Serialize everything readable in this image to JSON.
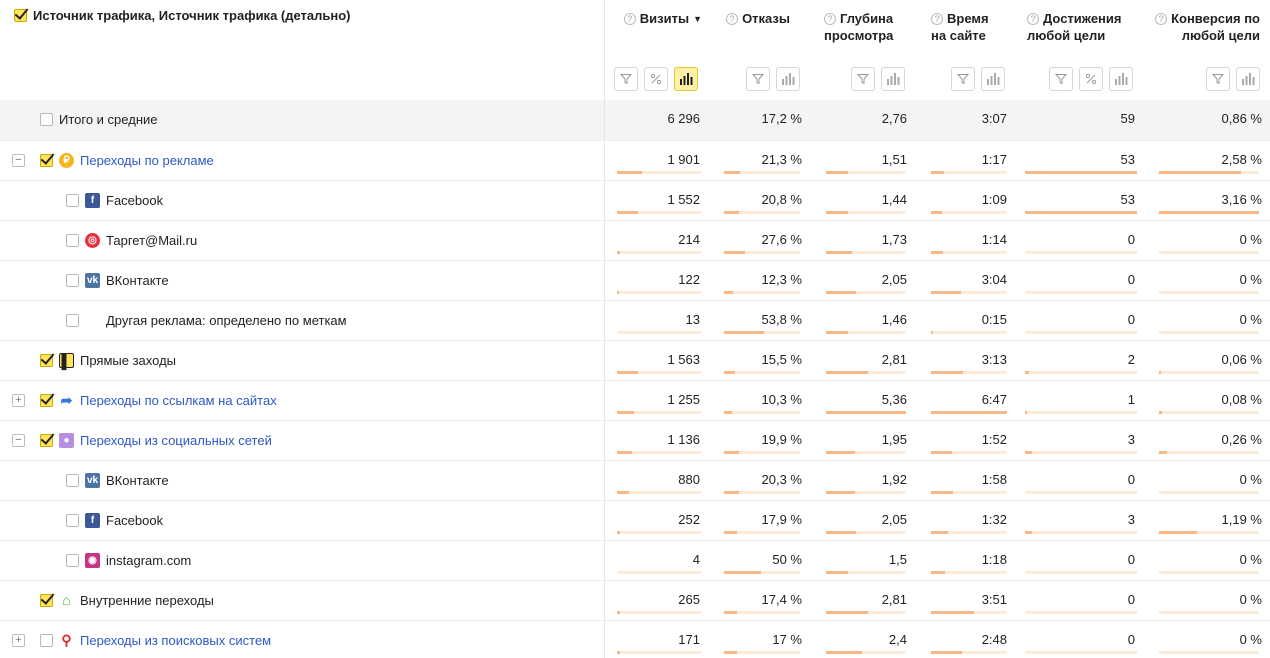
{
  "header": {
    "dimension_title": "Источник трафика, Источник трафика (детально)",
    "columns": [
      {
        "key": "visits",
        "title": "Визиты",
        "sort": "▼"
      },
      {
        "key": "bounce",
        "title": "Отказы"
      },
      {
        "key": "depth",
        "title": "Глубина просмотра"
      },
      {
        "key": "time",
        "title": "Время на сайте"
      },
      {
        "key": "goals",
        "title": "Достижения любой цели"
      },
      {
        "key": "conv",
        "title": "Конверсия по любой цели"
      }
    ]
  },
  "colors": {
    "link": "#2e57c9",
    "bar": "#f8b886",
    "bar_bg": "#fdebd7",
    "checkbox": "#ffe45c",
    "active_tool": "#fff0a8"
  },
  "rows": [
    {
      "kind": "total",
      "label": "Итого и средние",
      "checked": false,
      "values": [
        "6 296",
        "17,2 %",
        "2,76",
        "3:07",
        "59",
        "0,86 %"
      ],
      "bars": [
        0,
        0,
        0,
        0,
        0,
        0
      ]
    },
    {
      "kind": "group",
      "toggle": "−",
      "checked": true,
      "icon": "ads-icon",
      "label": "Переходы по рекламе",
      "link": true,
      "values": [
        "1 901",
        "21,3 %",
        "1,51",
        "1:17",
        "53",
        "2,58 %"
      ],
      "bars": [
        0.3,
        0.21,
        0.28,
        0.17,
        1.0,
        0.82
      ]
    },
    {
      "kind": "child",
      "checked": false,
      "icon": "facebook-icon",
      "label": "Facebook",
      "values": [
        "1 552",
        "20,8 %",
        "1,44",
        "1:09",
        "53",
        "3,16 %"
      ],
      "bars": [
        0.25,
        0.2,
        0.27,
        0.15,
        1.0,
        1.0
      ]
    },
    {
      "kind": "child",
      "checked": false,
      "icon": "target-mail-icon",
      "label": "Таргет@Mail.ru",
      "values": [
        "214",
        "27,6 %",
        "1,73",
        "1:14",
        "0",
        "0 %"
      ],
      "bars": [
        0.03,
        0.27,
        0.32,
        0.16,
        0,
        0
      ]
    },
    {
      "kind": "child",
      "checked": false,
      "icon": "vk-icon",
      "label": "ВКонтакте",
      "values": [
        "122",
        "12,3 %",
        "2,05",
        "3:04",
        "0",
        "0 %"
      ],
      "bars": [
        0.02,
        0.12,
        0.38,
        0.4,
        0,
        0
      ]
    },
    {
      "kind": "child",
      "checked": false,
      "icon": "",
      "label": "Другая реклама: определено по меткам",
      "values": [
        "13",
        "53,8 %",
        "1,46",
        "0:15",
        "0",
        "0 %"
      ],
      "bars": [
        0.005,
        0.53,
        0.27,
        0.03,
        0,
        0
      ]
    },
    {
      "kind": "group",
      "toggle": "",
      "checked": true,
      "icon": "direct-icon",
      "label": "Прямые заходы",
      "link": false,
      "values": [
        "1 563",
        "15,5 %",
        "2,81",
        "3:13",
        "2",
        "0,06 %"
      ],
      "bars": [
        0.25,
        0.15,
        0.52,
        0.42,
        0.04,
        0.02
      ]
    },
    {
      "kind": "group",
      "toggle": "+",
      "checked": true,
      "icon": "link-arrow-icon",
      "label": "Переходы по ссылкам на сайтах",
      "link": true,
      "values": [
        "1 255",
        "10,3 %",
        "5,36",
        "6:47",
        "1",
        "0,08 %"
      ],
      "bars": [
        0.2,
        0.1,
        1.0,
        1.0,
        0.02,
        0.03
      ]
    },
    {
      "kind": "group",
      "toggle": "−",
      "checked": true,
      "icon": "social-icon",
      "label": "Переходы из социальных сетей",
      "link": true,
      "values": [
        "1 136",
        "19,9 %",
        "1,95",
        "1:52",
        "3",
        "0,26 %"
      ],
      "bars": [
        0.18,
        0.2,
        0.36,
        0.27,
        0.06,
        0.08
      ]
    },
    {
      "kind": "child",
      "checked": false,
      "icon": "vk-icon",
      "label": "ВКонтакте",
      "values": [
        "880",
        "20,3 %",
        "1,92",
        "1:58",
        "0",
        "0 %"
      ],
      "bars": [
        0.14,
        0.2,
        0.36,
        0.29,
        0,
        0
      ]
    },
    {
      "kind": "child",
      "checked": false,
      "icon": "facebook-icon",
      "label": "Facebook",
      "values": [
        "252",
        "17,9 %",
        "2,05",
        "1:32",
        "3",
        "1,19 %"
      ],
      "bars": [
        0.04,
        0.17,
        0.38,
        0.22,
        0.06,
        0.38
      ]
    },
    {
      "kind": "child",
      "checked": false,
      "icon": "instagram-icon",
      "label": "instagram.com",
      "values": [
        "4",
        "50 %",
        "1,5",
        "1:18",
        "0",
        "0 %"
      ],
      "bars": [
        0.003,
        0.49,
        0.28,
        0.19,
        0,
        0
      ]
    },
    {
      "kind": "group",
      "toggle": "",
      "checked": true,
      "icon": "home-icon",
      "label": "Внутренние переходы",
      "link": false,
      "values": [
        "265",
        "17,4 %",
        "2,81",
        "3:51",
        "0",
        "0 %"
      ],
      "bars": [
        0.04,
        0.17,
        0.52,
        0.57,
        0,
        0
      ]
    },
    {
      "kind": "group",
      "toggle": "+",
      "checked": false,
      "icon": "search-engine-icon",
      "label": "Переходы из поисковых систем",
      "link": true,
      "values": [
        "171",
        "17 %",
        "2,4",
        "2:48",
        "0",
        "0 %"
      ],
      "bars": [
        0.03,
        0.17,
        0.45,
        0.41,
        0,
        0
      ]
    }
  ]
}
